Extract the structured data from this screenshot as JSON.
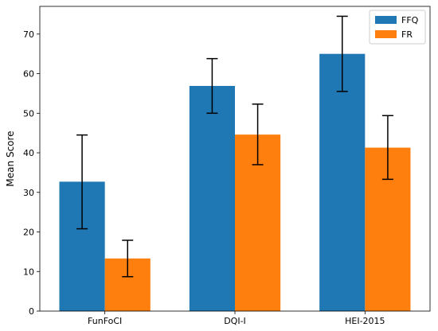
{
  "chart_data": {
    "type": "bar",
    "title": "",
    "xlabel": "",
    "ylabel": "Mean Score",
    "categories": [
      "FunFoCI",
      "DQI-I",
      "HEI-2015"
    ],
    "series": [
      {
        "name": "FFQ",
        "color": "#1f77b4",
        "values": [
          32.7,
          56.9,
          65.0
        ],
        "err_low": [
          20.8,
          50.0,
          55.5
        ],
        "err_high": [
          44.5,
          63.8,
          74.5
        ]
      },
      {
        "name": "FR",
        "color": "#ff7f0e",
        "values": [
          13.3,
          44.6,
          41.3
        ],
        "err_low": [
          8.7,
          37.0,
          33.3
        ],
        "err_high": [
          17.9,
          52.3,
          49.4
        ]
      }
    ],
    "ylim": [
      0,
      77
    ],
    "yticks": [
      0,
      10,
      20,
      30,
      40,
      50,
      60,
      70
    ],
    "legend_position": "top-right",
    "grid": false
  }
}
